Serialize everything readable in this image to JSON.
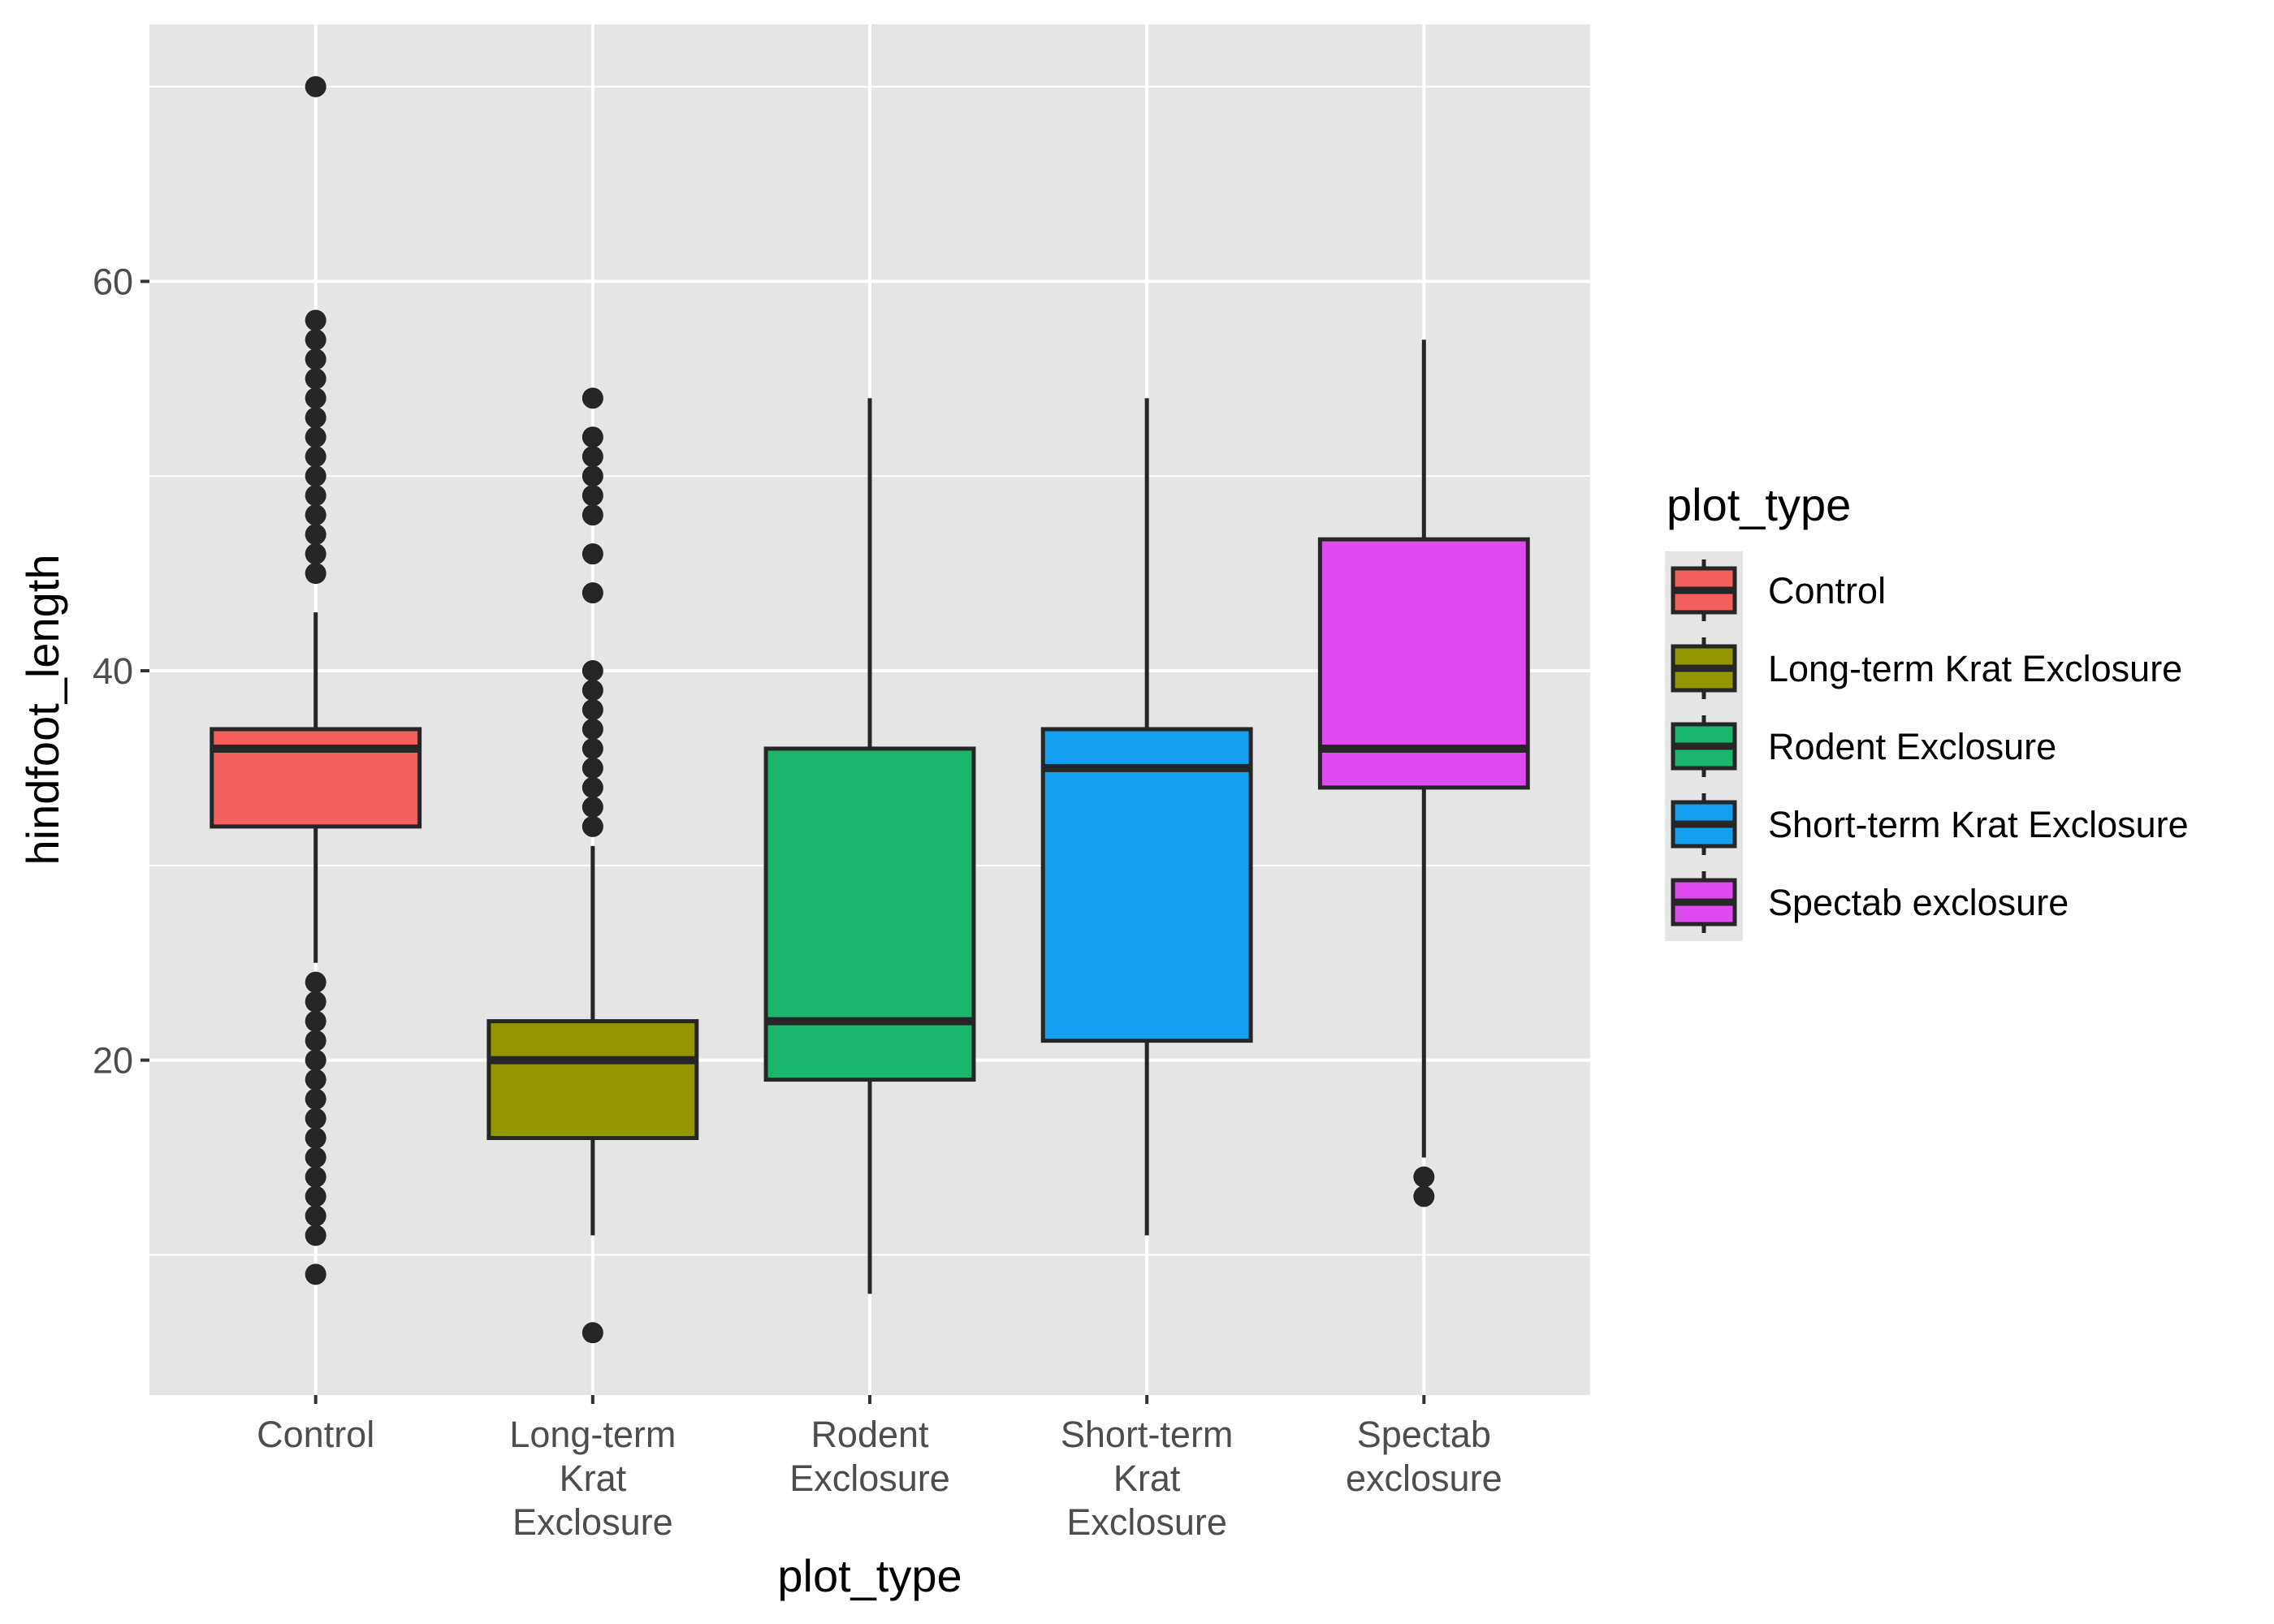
{
  "chart_data": {
    "type": "boxplot",
    "title": "",
    "xlabel": "plot_type",
    "ylabel": "hindfoot_length",
    "ylim": [
      2.8,
      73.2
    ],
    "y_ticks": [
      20,
      40,
      60
    ],
    "y_minor_ticks": [
      10,
      30,
      50,
      70
    ],
    "grid": true,
    "categories": [
      "Control",
      "Long-term Krat Exclosure",
      "Rodent Exclosure",
      "Short-term Krat Exclosure",
      "Spectab exclosure"
    ],
    "category_tick_labels": [
      [
        "Control"
      ],
      [
        "Long-term",
        "Krat",
        "Exclosure"
      ],
      [
        "Rodent",
        "Exclosure"
      ],
      [
        "Short-term",
        "Krat",
        "Exclosure"
      ],
      [
        "Spectab",
        "exclosure"
      ]
    ],
    "series": [
      {
        "name": "Control",
        "color": "#F25F5C",
        "whisker_low": 25,
        "q1": 32,
        "median": 36,
        "q3": 37,
        "whisker_high": 43,
        "outliers": [
          70,
          58,
          57,
          56,
          55,
          54,
          53,
          52,
          51,
          50,
          49,
          48,
          47,
          46,
          45,
          24,
          23,
          22,
          21,
          20,
          19,
          18,
          17,
          16,
          15,
          14,
          13,
          12,
          11,
          9
        ]
      },
      {
        "name": "Long-term Krat Exclosure",
        "color": "#939600",
        "whisker_low": 11,
        "q1": 16,
        "median": 20,
        "q3": 22,
        "whisker_high": 31,
        "outliers": [
          54,
          52,
          51,
          50,
          49,
          48,
          46,
          44,
          40,
          39,
          38,
          37,
          36,
          35,
          34,
          33,
          32,
          6
        ]
      },
      {
        "name": "Rodent Exclosure",
        "color": "#1AB66E",
        "whisker_low": 8,
        "q1": 19,
        "median": 22,
        "q3": 36,
        "whisker_high": 54,
        "outliers": []
      },
      {
        "name": "Short-term Krat Exclosure",
        "color": "#149FF0",
        "whisker_low": 11,
        "q1": 21,
        "median": 35,
        "q3": 37,
        "whisker_high": 54,
        "outliers": []
      },
      {
        "name": "Spectab exclosure",
        "color": "#DF49F0",
        "whisker_low": 15,
        "q1": 34,
        "median": 36,
        "q3": 46.75,
        "whisker_high": 57,
        "outliers": [
          14,
          13
        ]
      }
    ],
    "legend": {
      "title": "plot_type",
      "position": "right",
      "entries": [
        "Control",
        "Long-term Krat Exclosure",
        "Rodent Exclosure",
        "Short-term Krat Exclosure",
        "Spectab exclosure"
      ]
    }
  }
}
